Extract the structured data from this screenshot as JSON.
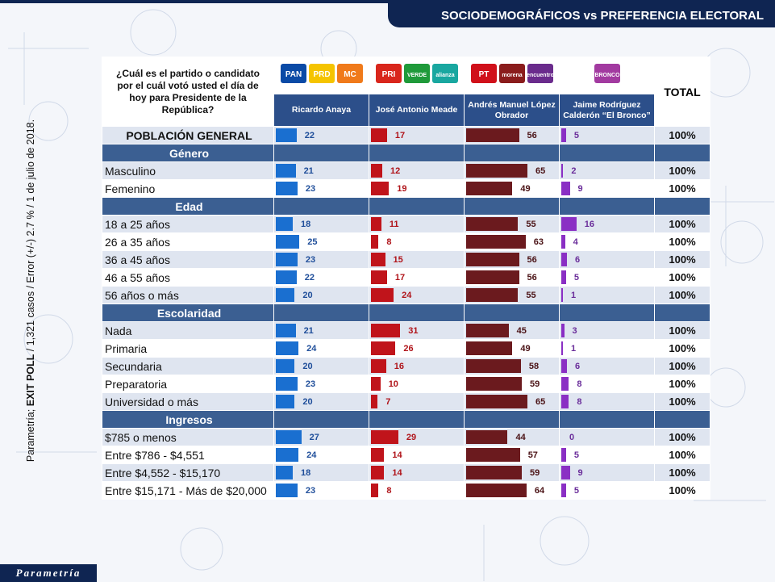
{
  "header": {
    "title": "SOCIODEMOGRÁFICOS vs PREFERENCIA ELECTORAL"
  },
  "side_note": {
    "prefix": "Parametría; ",
    "bold": "EXIT POLL",
    "rest": " / 1,321 casos / Error (+/-) 2.7 % / 1 de julio de 2018."
  },
  "brand": {
    "logo_text": "Parametría"
  },
  "table": {
    "question": "¿Cuál es el partido o candidato por el cuál votó usted el día de hoy para Presidente de la República?",
    "total_header": "TOTAL",
    "party_logos": [
      {
        "labels": [
          "PAN",
          "PRD",
          "MC"
        ],
        "colors": [
          "#0a4aa6",
          "#f5c400",
          "#f07a1a"
        ]
      },
      {
        "labels": [
          "PRI",
          "VERDE",
          "alianza"
        ],
        "colors": [
          "#d9261c",
          "#1f9a3a",
          "#19a7a0"
        ]
      },
      {
        "labels": [
          "PT",
          "morena",
          "encuentro"
        ],
        "colors": [
          "#d0101a",
          "#8a1c1c",
          "#6a2b8c"
        ]
      },
      {
        "labels": [
          "BRONCO"
        ],
        "colors": [
          "#a23aa0"
        ]
      }
    ],
    "candidates": [
      "Ricardo Anaya",
      "José Antonio Meade",
      "Andrés Manuel López Obrador",
      "Jaime Rodríguez Calderón “El Bronco”"
    ]
  },
  "chart_data": {
    "type": "bar",
    "series": [
      {
        "name": "Ricardo Anaya",
        "color": "#1a6fd0"
      },
      {
        "name": "José Antonio Meade",
        "color": "#c0141b"
      },
      {
        "name": "Andrés Manuel López Obrador",
        "color": "#6b1a1e"
      },
      {
        "name": "Jaime Rodríguez Calderón “El Bronco”",
        "color": "#8a2fc4"
      }
    ],
    "rows": [
      {
        "kind": "pop",
        "label": "POBLACIÓN GENERAL",
        "values": [
          22,
          17,
          56,
          5
        ],
        "total": "100%"
      },
      {
        "kind": "section",
        "label": "Género"
      },
      {
        "kind": "data",
        "label": "Masculino",
        "values": [
          21,
          12,
          65,
          2
        ],
        "total": "100%"
      },
      {
        "kind": "data",
        "label": "Femenino",
        "values": [
          23,
          19,
          49,
          9
        ],
        "total": "100%"
      },
      {
        "kind": "section",
        "label": "Edad"
      },
      {
        "kind": "data",
        "label": "18 a 25 años",
        "values": [
          18,
          11,
          55,
          16
        ],
        "total": "100%"
      },
      {
        "kind": "data",
        "label": "26 a 35 años",
        "values": [
          25,
          8,
          63,
          4
        ],
        "total": "100%"
      },
      {
        "kind": "data",
        "label": "36 a 45 años",
        "values": [
          23,
          15,
          56,
          6
        ],
        "total": "100%"
      },
      {
        "kind": "data",
        "label": "46 a 55 años",
        "values": [
          22,
          17,
          56,
          5
        ],
        "total": "100%"
      },
      {
        "kind": "data",
        "label": "56 años o más",
        "values": [
          20,
          24,
          55,
          1
        ],
        "total": "100%"
      },
      {
        "kind": "section",
        "label": "Escolaridad"
      },
      {
        "kind": "data",
        "label": "Nada",
        "values": [
          21,
          31,
          45,
          3
        ],
        "total": "100%"
      },
      {
        "kind": "data",
        "label": "Primaria",
        "values": [
          24,
          26,
          49,
          1
        ],
        "total": "100%"
      },
      {
        "kind": "data",
        "label": "Secundaria",
        "values": [
          20,
          16,
          58,
          6
        ],
        "total": "100%"
      },
      {
        "kind": "data",
        "label": "Preparatoria",
        "values": [
          23,
          10,
          59,
          8
        ],
        "total": "100%"
      },
      {
        "kind": "data",
        "label": "Universidad o más",
        "values": [
          20,
          7,
          65,
          8
        ],
        "total": "100%"
      },
      {
        "kind": "section",
        "label": "Ingresos"
      },
      {
        "kind": "data",
        "label": "$785 o menos",
        "values": [
          27,
          29,
          44,
          0
        ],
        "total": "100%"
      },
      {
        "kind": "data",
        "label": "Entre $786 - $4,551",
        "values": [
          24,
          14,
          57,
          5
        ],
        "total": "100%"
      },
      {
        "kind": "data",
        "label": "Entre $4,552 - $15,170",
        "values": [
          18,
          14,
          59,
          9
        ],
        "total": "100%"
      },
      {
        "kind": "data",
        "label": "Entre $15,171 - Más de $20,000",
        "values": [
          23,
          8,
          64,
          5
        ],
        "total": "100%"
      }
    ]
  }
}
